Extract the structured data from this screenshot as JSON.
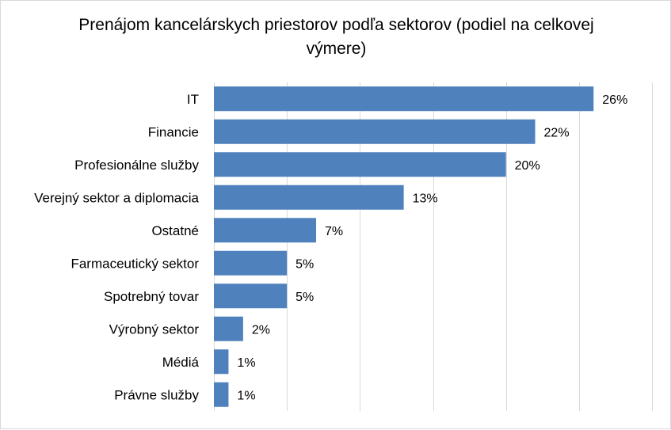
{
  "chart_data": {
    "type": "bar",
    "orientation": "horizontal",
    "title": "Prenájom kancelárskych priestorov podľa sektorov (podiel na celkovej výmere)",
    "categories": [
      "IT",
      "Financie",
      "Profesionálne služby",
      "Verejný sektor a diplomacia",
      "Ostatné",
      "Farmaceutický sektor",
      "Spotrebný tovar",
      "Výrobný sektor",
      "Médiá",
      "Právne služby"
    ],
    "values": [
      26,
      22,
      20,
      13,
      7,
      5,
      5,
      2,
      1,
      1
    ],
    "value_labels": [
      "26%",
      "22%",
      "20%",
      "13%",
      "7%",
      "5%",
      "5%",
      "2%",
      "1%",
      "1%"
    ],
    "xlim": [
      0,
      30
    ],
    "grid": "vertical",
    "legend": "none",
    "bar_color": "#4f81bd"
  }
}
